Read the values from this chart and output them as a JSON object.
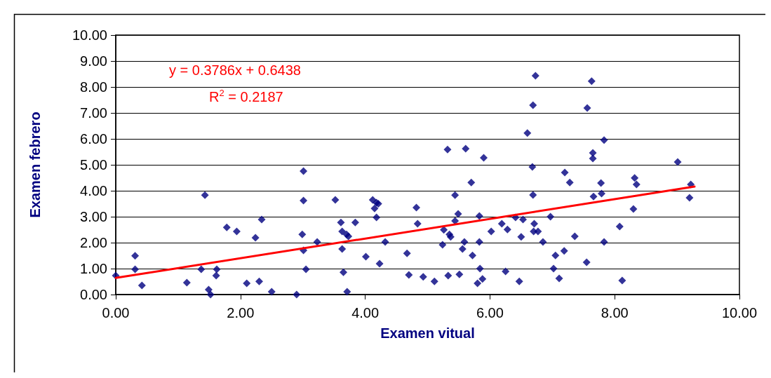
{
  "chart_data": {
    "type": "scatter",
    "xlabel": "Examen vitual",
    "ylabel": "Examen febrero",
    "xlim": [
      0,
      10
    ],
    "xticks": [
      {
        "value": 0,
        "label": "0.00"
      },
      {
        "value": 2,
        "label": "2.00"
      },
      {
        "value": 4,
        "label": "4.00"
      },
      {
        "value": 6,
        "label": "6.00"
      },
      {
        "value": 8,
        "label": "8.00"
      },
      {
        "value": 10,
        "label": "10.00"
      }
    ],
    "ylim": [
      0,
      10
    ],
    "yticks": [
      {
        "value": 0,
        "label": "0.00"
      },
      {
        "value": 1,
        "label": "1.00"
      },
      {
        "value": 2,
        "label": "2.00"
      },
      {
        "value": 3,
        "label": "3.00"
      },
      {
        "value": 4,
        "label": "4.00"
      },
      {
        "value": 5,
        "label": "5.00"
      },
      {
        "value": 6,
        "label": "6.00"
      },
      {
        "value": 7,
        "label": "7.00"
      },
      {
        "value": 8,
        "label": "8.00"
      },
      {
        "value": 9,
        "label": "9.00"
      },
      {
        "value": 10,
        "label": "10.00"
      }
    ],
    "grid": "y",
    "annotations": [
      "y = 0.3786x + 0.6438",
      "R$^{2}$ = 0.2187"
    ],
    "series": [
      {
        "color": "#000080",
        "marker": "diamond",
        "x": [
          0,
          0.31,
          0.31,
          0.42,
          1.14,
          1.43,
          1.37,
          1.49,
          1.52,
          1.62,
          1.61,
          1.78,
          1.94,
          2.1,
          2.24,
          2.3,
          2.34,
          2.5,
          2.9,
          2.99,
          3.01,
          3.01,
          3.01,
          3.05,
          3.23,
          3.52,
          3.61,
          3.63,
          3.63,
          3.65,
          3.7,
          3.71,
          3.73,
          3.84,
          4.01,
          4.12,
          4.15,
          4.18,
          4.18,
          4.21,
          4.23,
          4.32,
          4.67,
          4.7,
          4.82,
          4.84,
          4.93,
          5.11,
          5.24,
          5.26,
          5.32,
          5.33,
          5.35,
          5.37,
          5.44,
          5.44,
          5.49,
          5.51,
          5.56,
          5.59,
          5.61,
          5.7,
          5.72,
          5.8,
          5.83,
          5.83,
          5.84,
          5.88,
          5.9,
          6.02,
          6.19,
          6.25,
          6.28,
          6.41,
          6.47,
          6.5,
          6.53,
          6.6,
          6.68,
          6.69,
          6.69,
          6.7,
          6.71,
          6.73,
          6.77,
          6.85,
          6.97,
          7.02,
          7.05,
          7.11,
          7.19,
          7.2,
          7.28,
          7.36,
          7.55,
          7.56,
          7.63,
          7.65,
          7.65,
          7.66,
          7.78,
          7.79,
          7.83,
          7.83,
          8.08,
          8.12,
          8.3,
          8.32,
          8.35,
          9.01,
          9.2,
          9.22
        ],
        "values": [
          0.73,
          1.49,
          0.97,
          0.35,
          0.46,
          3.83,
          0.97,
          0.19,
          0,
          0.97,
          0.73,
          2.59,
          2.43,
          0.43,
          2.19,
          0.51,
          2.89,
          0.11,
          0,
          2.32,
          4.76,
          3.62,
          1.7,
          0.97,
          2.03,
          3.65,
          2.78,
          1.76,
          2.43,
          0.86,
          2.32,
          0.11,
          2.24,
          2.78,
          1.46,
          3.65,
          3.32,
          3.54,
          2.97,
          3.5,
          1.19,
          2.03,
          1.59,
          0.76,
          3.35,
          2.73,
          0.68,
          0.51,
          1.92,
          2.49,
          5.59,
          0.73,
          2.32,
          2.22,
          3.83,
          2.84,
          3.11,
          0.78,
          1.76,
          2.03,
          5.62,
          4.32,
          1.51,
          0.43,
          3.03,
          2.03,
          1,
          0.6,
          5.27,
          2.43,
          2.73,
          0.89,
          2.51,
          2.97,
          0.51,
          2.22,
          2.89,
          6.22,
          4.92,
          7.3,
          3.84,
          2.43,
          2.73,
          8.43,
          2.43,
          2.03,
          3,
          1,
          1.51,
          0.62,
          1.68,
          4.7,
          4.32,
          2.24,
          1.24,
          7.19,
          8.22,
          5.46,
          5.24,
          3.78,
          4.3,
          3.89,
          2.03,
          5.95,
          2.62,
          0.54,
          3.3,
          4.49,
          4.24,
          5.11,
          3.73,
          4.24
        ]
      },
      {
        "type": "line",
        "color": "#ff0000",
        "marker": "none",
        "line_style": "solid",
        "x": [
          0,
          9.28
        ],
        "values": [
          0.64,
          4.16
        ]
      }
    ]
  }
}
